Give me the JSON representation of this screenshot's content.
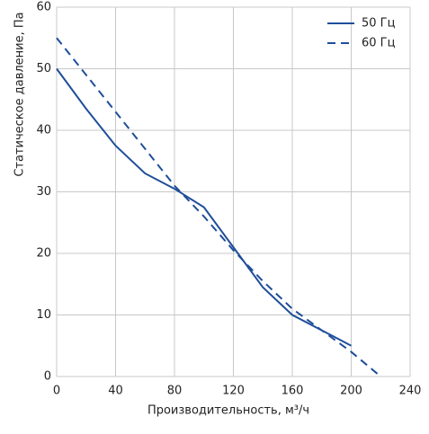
{
  "chart_data": {
    "type": "line",
    "x_label": "Производительность, м³/ч",
    "y_label": "Статическое давление, Па",
    "series": [
      {
        "name": "50 Гц",
        "color": "#1f4e99",
        "linestyle": "solid",
        "x": [
          0,
          20,
          40,
          60,
          80,
          100,
          120,
          140,
          160,
          180,
          200
        ],
        "values": [
          50,
          43.5,
          37.5,
          33,
          30.5,
          27.5,
          21,
          14.5,
          10,
          7.5,
          5
        ]
      },
      {
        "name": "60 Гц",
        "color": "#1f4e99",
        "linestyle": "dashed",
        "x": [
          0,
          20,
          40,
          60,
          80,
          100,
          120,
          140,
          160,
          180,
          200,
          220
        ],
        "values": [
          55,
          49,
          43,
          37,
          31,
          26,
          20.5,
          15.5,
          11,
          7.5,
          4,
          0
        ]
      }
    ],
    "xlim": [
      0,
      240
    ],
    "xticks": [
      0,
      40,
      80,
      120,
      160,
      200,
      240
    ],
    "ylim": [
      0,
      60
    ],
    "yticks": [
      0,
      10,
      20,
      30,
      40,
      50,
      60
    ],
    "grid": true,
    "legend": "upper right"
  }
}
